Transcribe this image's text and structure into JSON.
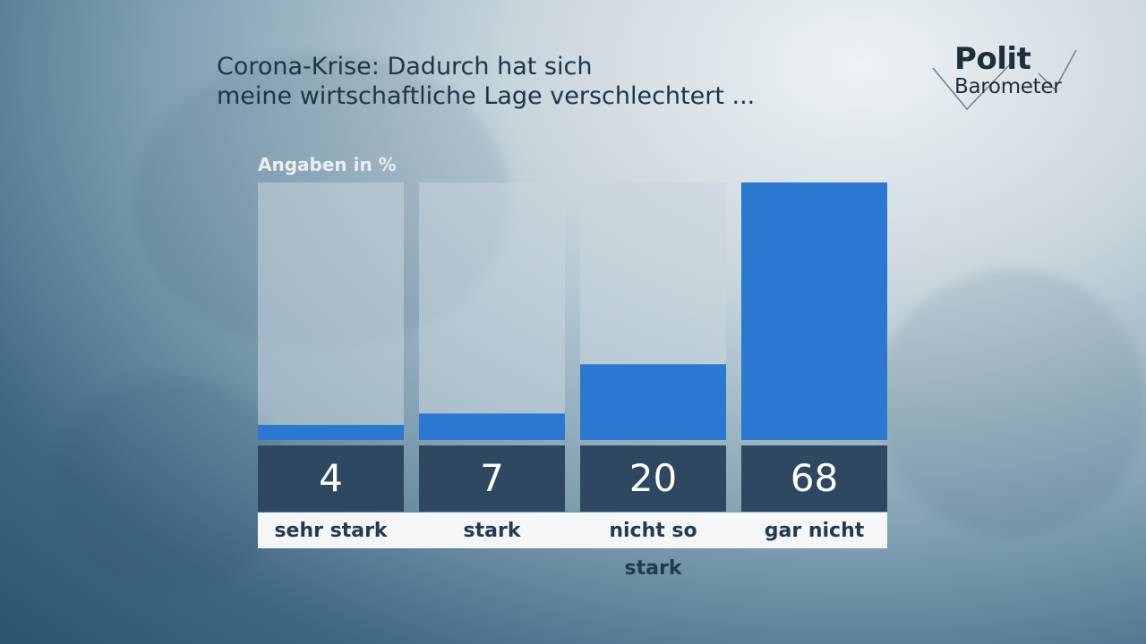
{
  "title": {
    "line1": "Corona-Krise: Dadurch hat sich",
    "line2": "meine wirtschaftliche Lage verschlechtert ..."
  },
  "logo": {
    "line1": "Polit",
    "line2": "Barometer"
  },
  "colors": {
    "bar": "#2a78d0",
    "track": "#c9d6de",
    "value_box": "#2e4862",
    "label_strip": "#f4f6f7"
  },
  "chart_data": {
    "type": "bar",
    "ylabel": "Angaben in %",
    "categories": [
      "sehr stark",
      "stark",
      "nicht so stark",
      "gar nicht"
    ],
    "values": [
      4,
      7,
      20,
      68
    ],
    "value_labels": [
      "4",
      "7",
      "20",
      "68"
    ],
    "ylim": [
      0,
      68
    ],
    "grid": false,
    "legend": "none"
  }
}
